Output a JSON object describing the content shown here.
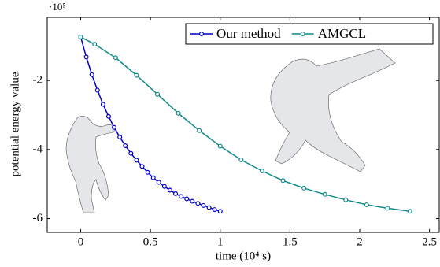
{
  "chart_data": {
    "type": "line",
    "xlabel": "time (10⁴ s)",
    "ylabel": "potential energy value",
    "y_exponent": "·10⁵",
    "xlim": [
      -0.24,
      2.57
    ],
    "ylim": [
      -6.4,
      -0.17
    ],
    "xticks": [
      0,
      0.5,
      1,
      1.5,
      2,
      2.5
    ],
    "yticks": [
      -6,
      -4,
      -2
    ],
    "legend": "upper right",
    "series": [
      {
        "name": "Our method",
        "color": "#0000cc",
        "x": [
          0,
          0.04,
          0.08,
          0.12,
          0.16,
          0.2,
          0.24,
          0.28,
          0.32,
          0.36,
          0.4,
          0.44,
          0.48,
          0.52,
          0.56,
          0.6,
          0.64,
          0.68,
          0.72,
          0.76,
          0.8,
          0.84,
          0.88,
          0.92,
          0.96,
          1.0
        ],
        "values": [
          -0.74,
          -1.32,
          -1.83,
          -2.28,
          -2.69,
          -3.04,
          -3.36,
          -3.64,
          -3.89,
          -4.11,
          -4.31,
          -4.49,
          -4.66,
          -4.82,
          -4.95,
          -5.07,
          -5.18,
          -5.28,
          -5.36,
          -5.43,
          -5.5,
          -5.56,
          -5.62,
          -5.68,
          -5.74,
          -5.79
        ]
      },
      {
        "name": "AMGCL",
        "color": "#138a8a",
        "x": [
          0,
          0.1,
          0.25,
          0.4,
          0.55,
          0.7,
          0.85,
          1.0,
          1.15,
          1.3,
          1.45,
          1.6,
          1.75,
          1.9,
          2.05,
          2.2,
          2.36
        ],
        "values": [
          -0.74,
          -0.95,
          -1.34,
          -1.85,
          -2.4,
          -2.95,
          -3.45,
          -3.9,
          -4.3,
          -4.62,
          -4.9,
          -5.12,
          -5.3,
          -5.46,
          -5.6,
          -5.7,
          -5.79
        ]
      }
    ]
  }
}
